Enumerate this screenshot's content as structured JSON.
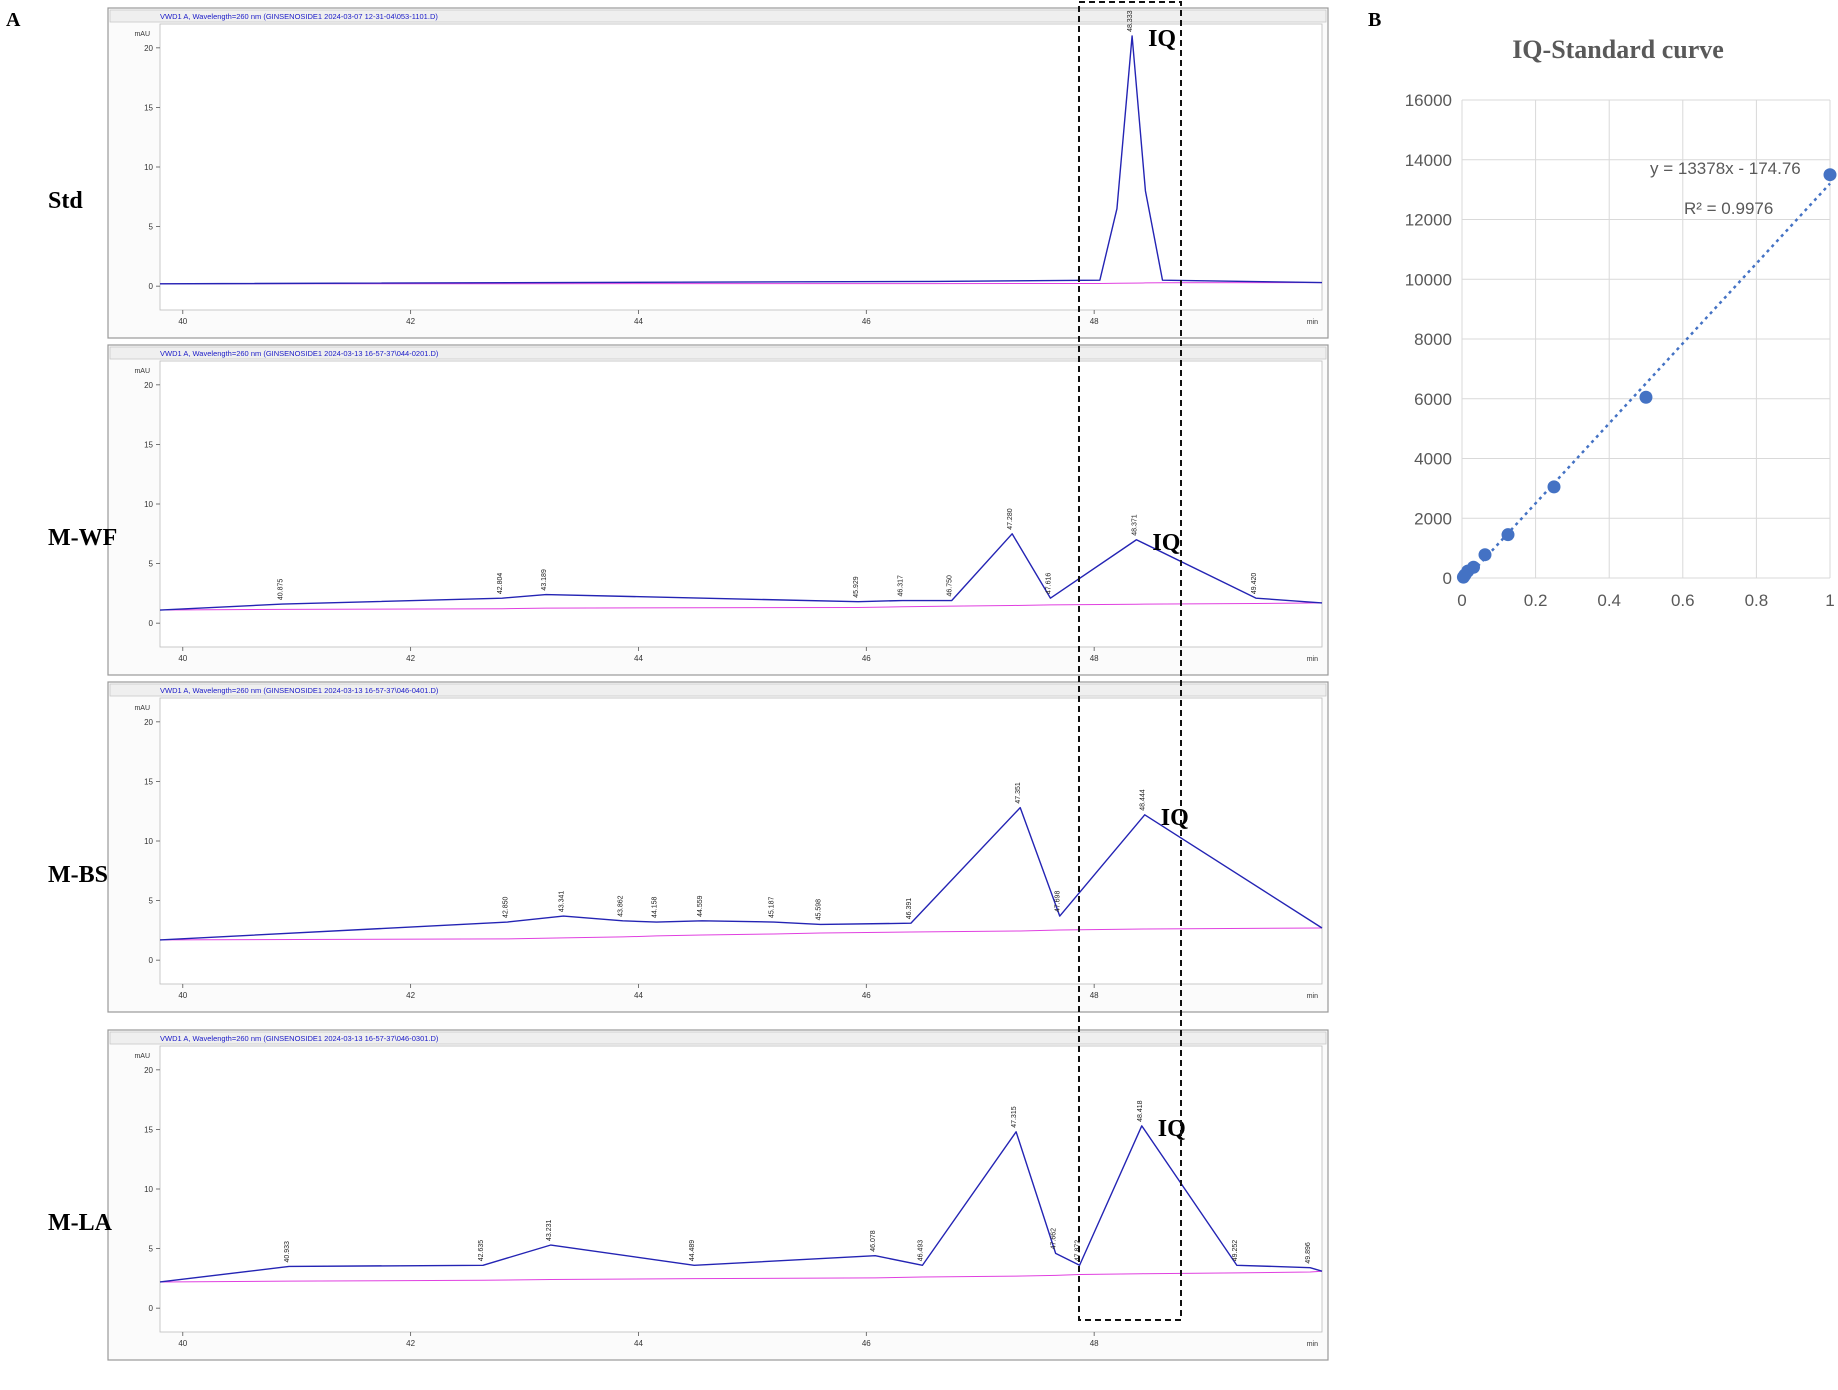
{
  "panel_labels": {
    "a": "A",
    "b": "B"
  },
  "chromatograms": {
    "x_unit": "min",
    "y_unit": "mAU",
    "x_ticks": [
      "40",
      "42",
      "44",
      "46",
      "48"
    ],
    "y_ticks": [
      "0",
      "5",
      "10",
      "15",
      "20"
    ],
    "iq_label": "IQ",
    "panels": [
      {
        "side_label": "Std",
        "header": "VWD1 A, Wavelength=260 nm (GINSENOSIDE1 2024-03-07 12-31-04\\053-1101.D)",
        "peaks": [
          {
            "rt": 48.333,
            "label": "48.333"
          }
        ]
      },
      {
        "side_label": "M-WF",
        "header": "VWD1 A, Wavelength=260 nm (GINSENOSIDE1 2024-03-13 16-57-37\\044-0201.D)",
        "peaks": [
          {
            "rt": 40.875,
            "label": "40.875"
          },
          {
            "rt": 42.804,
            "label": "42.804"
          },
          {
            "rt": 43.189,
            "label": "43.189"
          },
          {
            "rt": 45.929,
            "label": "45.929"
          },
          {
            "rt": 46.317,
            "label": "46.317"
          },
          {
            "rt": 46.75,
            "label": "46.750"
          },
          {
            "rt": 47.28,
            "label": "47.280"
          },
          {
            "rt": 47.616,
            "label": "47.616"
          },
          {
            "rt": 48.371,
            "label": "48.371"
          },
          {
            "rt": 49.42,
            "label": "49.420"
          }
        ]
      },
      {
        "side_label": "M-BS",
        "header": "VWD1 A, Wavelength=260 nm (GINSENOSIDE1 2024-03-13 16-57-37\\046-0401.D)",
        "peaks": [
          {
            "rt": 42.85,
            "label": "42.850"
          },
          {
            "rt": 43.341,
            "label": "43.341"
          },
          {
            "rt": 43.862,
            "label": "43.862"
          },
          {
            "rt": 44.158,
            "label": "44.158"
          },
          {
            "rt": 44.559,
            "label": "44.559"
          },
          {
            "rt": 45.187,
            "label": "45.187"
          },
          {
            "rt": 45.598,
            "label": "45.598"
          },
          {
            "rt": 46.391,
            "label": "46.391"
          },
          {
            "rt": 47.351,
            "label": "47.351"
          },
          {
            "rt": 47.698,
            "label": "47.698"
          },
          {
            "rt": 48.444,
            "label": "48.444"
          }
        ]
      },
      {
        "side_label": "M-LA",
        "header": "VWD1 A, Wavelength=260 nm (GINSENOSIDE1 2024-03-13 16-57-37\\046-0301.D)",
        "peaks": [
          {
            "rt": 40.933,
            "label": "40.933"
          },
          {
            "rt": 42.635,
            "label": "42.635"
          },
          {
            "rt": 43.231,
            "label": "43.231"
          },
          {
            "rt": 44.489,
            "label": "44.489"
          },
          {
            "rt": 46.078,
            "label": "46.078"
          },
          {
            "rt": 46.493,
            "label": "46.493"
          },
          {
            "rt": 47.315,
            "label": "47.315"
          },
          {
            "rt": 47.662,
            "label": "47.662"
          },
          {
            "rt": 47.872,
            "label": "47.872"
          },
          {
            "rt": 48.418,
            "label": "48.418"
          },
          {
            "rt": 49.252,
            "label": "49.252"
          },
          {
            "rt": 49.896,
            "label": "49.896"
          }
        ]
      }
    ]
  },
  "chart_data": [
    {
      "type": "line",
      "title": "",
      "xlabel": "min",
      "ylabel": "mAU",
      "xlim": [
        39.8,
        50.0
      ],
      "ylim": [
        -2,
        22
      ],
      "series": [
        {
          "name": "Std",
          "x": [
            39.8,
            46.6,
            48.05,
            48.2,
            48.333,
            48.45,
            48.6,
            50.0
          ],
          "y": [
            0.2,
            0.4,
            0.5,
            6.5,
            21.0,
            8.0,
            0.5,
            0.3
          ]
        },
        {
          "name": "M-WF",
          "x": [
            39.8,
            40.875,
            42.804,
            43.189,
            45.929,
            46.317,
            46.75,
            47.28,
            47.616,
            48.371,
            49.42,
            50.0
          ],
          "y": [
            1.1,
            1.6,
            2.1,
            2.4,
            1.8,
            1.9,
            1.9,
            7.5,
            2.1,
            7.0,
            2.1,
            1.7
          ]
        },
        {
          "name": "M-BS",
          "x": [
            39.8,
            42.85,
            43.341,
            43.862,
            44.158,
            44.559,
            45.187,
            45.598,
            46.391,
            47.351,
            47.698,
            48.444,
            50.0
          ],
          "y": [
            1.7,
            3.2,
            3.7,
            3.3,
            3.2,
            3.3,
            3.2,
            3.0,
            3.1,
            12.8,
            3.7,
            12.2,
            2.7
          ]
        },
        {
          "name": "M-LA",
          "x": [
            39.8,
            40.933,
            42.635,
            43.231,
            44.489,
            46.078,
            46.493,
            47.315,
            47.662,
            47.872,
            48.418,
            49.252,
            49.896,
            50.0
          ],
          "y": [
            2.2,
            3.5,
            3.6,
            5.3,
            3.6,
            4.4,
            3.6,
            14.8,
            4.6,
            3.6,
            15.3,
            3.6,
            3.4,
            3.1
          ]
        }
      ]
    },
    {
      "type": "scatter",
      "title": "IQ-Standard curve",
      "xlim": [
        0,
        1
      ],
      "ylim": [
        0,
        16000
      ],
      "x_ticks": [
        "0",
        "0.2",
        "0.4",
        "0.6",
        "0.8",
        "1"
      ],
      "y_ticks": [
        "0",
        "2000",
        "4000",
        "6000",
        "8000",
        "10000",
        "12000",
        "14000",
        "16000"
      ],
      "grid": true,
      "points": {
        "x": [
          0.0039,
          0.0078,
          0.0156,
          0.03125,
          0.0625,
          0.125,
          0.25,
          0.5,
          1.0
        ],
        "y": [
          30,
          100,
          230,
          360,
          780,
          1450,
          3050,
          6050,
          13500
        ]
      },
      "trendline": {
        "slope": 13378,
        "intercept": -174.76
      },
      "equation": "y = 13378x - 174.76",
      "r2_label": "R² = 0.9976",
      "colors": {
        "points": "#4472C4",
        "trendline": "#4472C4"
      }
    }
  ],
  "colors": {
    "trace": "#2424b4",
    "baseline": "#e040e0",
    "header_text": "#1a1ac8",
    "frame": "#9a9a9a"
  }
}
